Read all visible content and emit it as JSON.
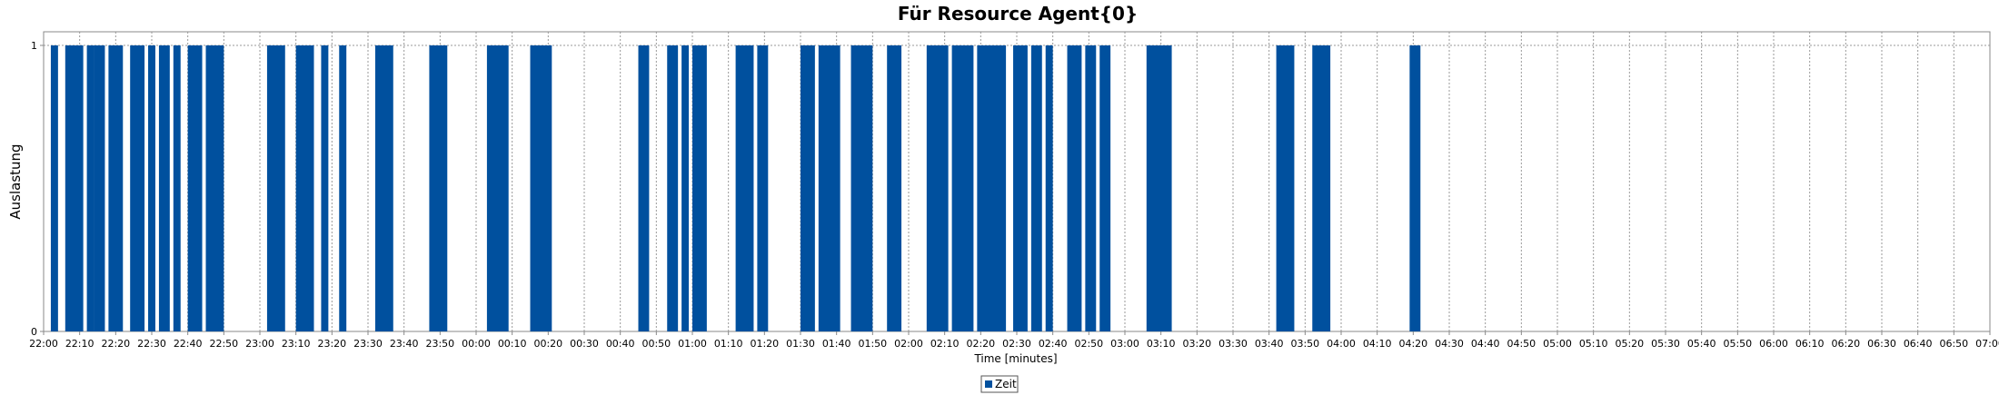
{
  "chart_data": {
    "type": "bar",
    "title": "Für Resource Agent{0}",
    "xlabel": "Time [minutes]",
    "ylabel": "Auslastung",
    "ylim": [
      0,
      1
    ],
    "y_ticks": [
      "0",
      "1"
    ],
    "x_range": [
      "22:00",
      "07:00"
    ],
    "x_ticks": [
      "22:00",
      "22:10",
      "22:20",
      "22:30",
      "22:40",
      "22:50",
      "23:00",
      "23:10",
      "23:20",
      "23:30",
      "23:40",
      "23:50",
      "00:00",
      "00:10",
      "00:20",
      "00:30",
      "00:40",
      "00:50",
      "01:00",
      "01:10",
      "01:20",
      "01:30",
      "01:40",
      "01:50",
      "02:00",
      "02:10",
      "02:20",
      "02:30",
      "02:40",
      "02:50",
      "03:00",
      "03:10",
      "03:20",
      "03:30",
      "03:40",
      "03:50",
      "04:00",
      "04:10",
      "04:20",
      "04:30",
      "04:40",
      "04:50",
      "05:00",
      "05:10",
      "05:20",
      "05:30",
      "05:40",
      "05:50",
      "06:00",
      "06:10",
      "06:20",
      "06:30",
      "06:40",
      "06:50",
      "07:00"
    ],
    "grid": true,
    "legend_position": "bottom-center",
    "series": [
      {
        "name": "Zeit",
        "color": "#00509e",
        "intervals": [
          [
            "22:02",
            "22:04"
          ],
          [
            "22:06",
            "22:11"
          ],
          [
            "22:12",
            "22:14"
          ],
          [
            "22:14",
            "22:17"
          ],
          [
            "22:18",
            "22:22"
          ],
          [
            "22:24",
            "22:28"
          ],
          [
            "22:29",
            "22:31"
          ],
          [
            "22:32",
            "22:35"
          ],
          [
            "22:36",
            "22:38"
          ],
          [
            "22:40",
            "22:44"
          ],
          [
            "22:45",
            "22:50"
          ],
          [
            "23:02",
            "23:07"
          ],
          [
            "23:10",
            "23:15"
          ],
          [
            "23:17",
            "23:19"
          ],
          [
            "23:22",
            "23:24"
          ],
          [
            "23:32",
            "23:37"
          ],
          [
            "23:47",
            "23:52"
          ],
          [
            "00:03",
            "00:09"
          ],
          [
            "00:15",
            "00:21"
          ],
          [
            "00:45",
            "00:48"
          ],
          [
            "00:53",
            "00:56"
          ],
          [
            "00:57",
            "00:59"
          ],
          [
            "01:00",
            "01:04"
          ],
          [
            "01:12",
            "01:17"
          ],
          [
            "01:18",
            "01:21"
          ],
          [
            "01:30",
            "01:34"
          ],
          [
            "01:35",
            "01:41"
          ],
          [
            "01:44",
            "01:50"
          ],
          [
            "01:54",
            "01:58"
          ],
          [
            "02:05",
            "02:11"
          ],
          [
            "02:12",
            "02:18"
          ],
          [
            "02:19",
            "02:27"
          ],
          [
            "02:29",
            "02:33"
          ],
          [
            "02:34",
            "02:37"
          ],
          [
            "02:38",
            "02:40"
          ],
          [
            "02:44",
            "02:48"
          ],
          [
            "02:49",
            "02:52"
          ],
          [
            "02:53",
            "02:56"
          ],
          [
            "03:06",
            "03:13"
          ],
          [
            "03:42",
            "03:47"
          ],
          [
            "03:52",
            "03:57"
          ],
          [
            "04:19",
            "04:22"
          ]
        ]
      }
    ]
  }
}
